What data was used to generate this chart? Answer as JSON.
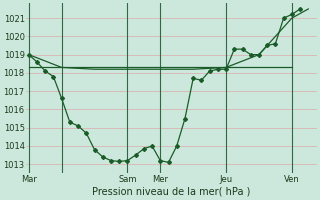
{
  "bg_color": "#cce8dd",
  "grid_color": "#aad4c8",
  "line_color": "#1a5c28",
  "title": "Pression niveau de la mer( hPa )",
  "ylim": [
    1012.5,
    1021.8
  ],
  "yticks": [
    1013,
    1014,
    1015,
    1016,
    1017,
    1018,
    1019,
    1020,
    1021
  ],
  "xlim": [
    -2,
    210
  ],
  "day_lines_x": [
    0,
    24,
    72,
    96,
    144,
    192
  ],
  "xtick_positions": [
    0,
    24,
    72,
    96,
    144,
    192
  ],
  "xtick_labels": [
    "Mar",
    "",
    "Sam",
    "Mer",
    "Jeu",
    "Ven"
  ],
  "series1_x": [
    0,
    24,
    48,
    72,
    96,
    120,
    144,
    168,
    192,
    204
  ],
  "series1_y": [
    1019.0,
    1018.3,
    1018.2,
    1018.2,
    1018.2,
    1018.2,
    1018.3,
    1019.0,
    1021.0,
    1021.5
  ],
  "series2_x": [
    0,
    6,
    12,
    18,
    24,
    30,
    36,
    42,
    48,
    54,
    60,
    66,
    72,
    78,
    84,
    90,
    96,
    102,
    108,
    114,
    120,
    126,
    132,
    138,
    144,
    150,
    156,
    162,
    168,
    174,
    180,
    186,
    192,
    198
  ],
  "series2_y": [
    1019.0,
    1018.6,
    1018.1,
    1017.8,
    1016.6,
    1015.3,
    1015.1,
    1014.7,
    1013.8,
    1013.4,
    1013.2,
    1013.15,
    1013.2,
    1013.5,
    1013.85,
    1014.0,
    1013.2,
    1013.1,
    1014.0,
    1015.5,
    1017.7,
    1017.6,
    1018.1,
    1018.2,
    1018.2,
    1019.3,
    1019.3,
    1019.0,
    1019.0,
    1019.5,
    1019.6,
    1021.0,
    1021.2,
    1021.5
  ],
  "series3_x": [
    0,
    192
  ],
  "series3_y": [
    1018.3,
    1018.3
  ]
}
